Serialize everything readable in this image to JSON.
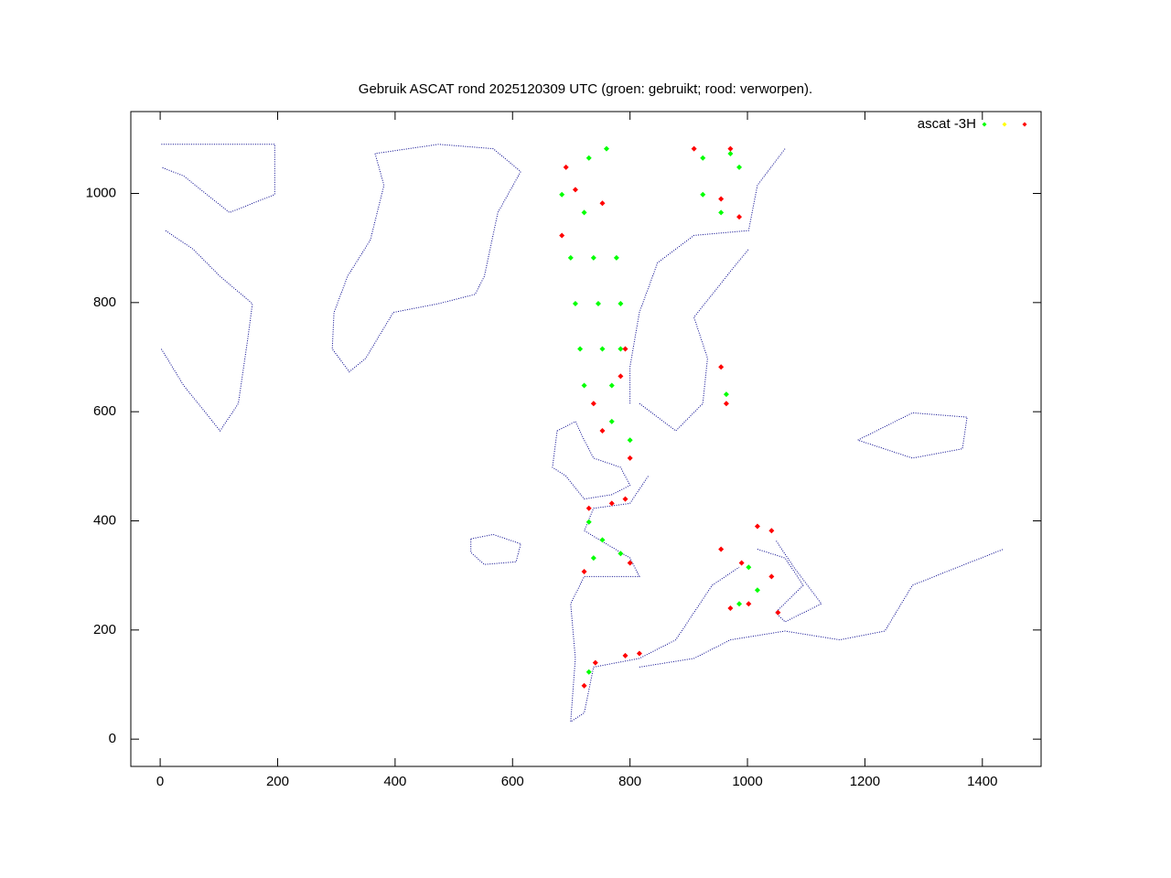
{
  "chart_data": {
    "type": "scatter",
    "title": "Gebruik ASCAT rond 2025120309 UTC (groen: gebruikt; rood: verworpen).",
    "xlim": [
      -50,
      1500
    ],
    "ylim": [
      -50,
      1150
    ],
    "xticks": [
      0,
      200,
      400,
      600,
      800,
      1000,
      1200,
      1400
    ],
    "yticks": [
      0,
      200,
      400,
      600,
      800,
      1000
    ],
    "legend": "top-right",
    "series": [
      {
        "mode": "lines",
        "color": "#00008b",
        "x": [
          366,
          381,
          358,
          319,
          296,
          293,
          322,
          350,
          397,
          474,
          536,
          552,
          575,
          614,
          567,
          474,
          366,
          null,
          529,
          567,
          614,
          606,
          552,
          529,
          529,
          null,
          800,
          800,
          816,
          847,
          909,
          1002,
          1017,
          1064,
          null,
          816,
          878,
          924,
          932,
          909,
          971,
          1002,
          null,
          676,
          707,
          722,
          738,
          784,
          800,
          769,
          722,
          691,
          668,
          676,
          null,
          831,
          800,
          738,
          722,
          800,
          816,
          722,
          699,
          707,
          699,
          722,
          738,
          816,
          878,
          909,
          940,
          986,
          null,
          1017,
          1064,
          1095,
          1048,
          1064,
          1126,
          1079,
          1048,
          null,
          816,
          909,
          971,
          1064,
          1157,
          1234,
          1281,
          1358,
          1436,
          null,
          1188,
          1281,
          1374,
          1366,
          1281,
          1188,
          null,
          2,
          40,
          102,
          133,
          149,
          157,
          102,
          56,
          9,
          null,
          2,
          195,
          195,
          118,
          40,
          2
        ],
        "y": [
          1073,
          1015,
          915,
          848,
          782,
          715,
          673,
          698,
          782,
          798,
          815,
          848,
          965,
          1040,
          1082,
          1090,
          1073,
          null,
          367,
          375,
          358,
          325,
          320,
          342,
          367,
          null,
          615,
          682,
          782,
          873,
          923,
          932,
          1015,
          1082,
          null,
          615,
          565,
          615,
          698,
          773,
          857,
          898,
          null,
          565,
          582,
          548,
          515,
          498,
          465,
          448,
          440,
          482,
          498,
          565,
          null,
          482,
          432,
          423,
          382,
          332,
          298,
          298,
          248,
          148,
          32,
          48,
          132,
          148,
          182,
          232,
          282,
          315,
          null,
          348,
          332,
          282,
          232,
          215,
          248,
          315,
          365,
          null,
          132,
          148,
          182,
          198,
          182,
          198,
          282,
          315,
          348,
          null,
          548,
          598,
          590,
          532,
          515,
          548,
          null,
          715,
          648,
          565,
          615,
          732,
          798,
          848,
          898,
          932,
          null,
          1090,
          1090,
          998,
          965,
          1032,
          1048
        ]
      },
      {
        "name": "ascat -3H",
        "mode": "points",
        "color": "#00ff00",
        "x": [
          684,
          722,
          699,
          738,
          777,
          707,
          746,
          784,
          715,
          753,
          784,
          722,
          769,
          769,
          800,
          730,
          760,
          924,
          971,
          924,
          955,
          986,
          730,
          753,
          784,
          738,
          1002,
          1017,
          986,
          730,
          964
        ],
        "y": [
          998,
          965,
          882,
          882,
          882,
          798,
          798,
          798,
          715,
          715,
          715,
          648,
          648,
          582,
          548,
          1065,
          1082,
          1065,
          1073,
          998,
          965,
          1048,
          398,
          365,
          340,
          332,
          315,
          273,
          248,
          123,
          632
        ]
      },
      {
        "mode": "points",
        "color": "#ffff00",
        "x": [],
        "y": []
      },
      {
        "mode": "points",
        "color": "#ff0000",
        "x": [
          691,
          707,
          753,
          684,
          792,
          784,
          738,
          753,
          800,
          909,
          971,
          955,
          986,
          955,
          964,
          730,
          769,
          792,
          800,
          722,
          1017,
          1041,
          955,
          990,
          1041,
          971,
          1002,
          1052,
          792,
          816,
          741,
          722
        ],
        "y": [
          1048,
          1007,
          982,
          923,
          715,
          665,
          615,
          565,
          515,
          1082,
          1082,
          990,
          957,
          682,
          615,
          423,
          432,
          440,
          323,
          307,
          390,
          382,
          348,
          323,
          298,
          240,
          248,
          232,
          153,
          157,
          140,
          98
        ]
      }
    ]
  }
}
